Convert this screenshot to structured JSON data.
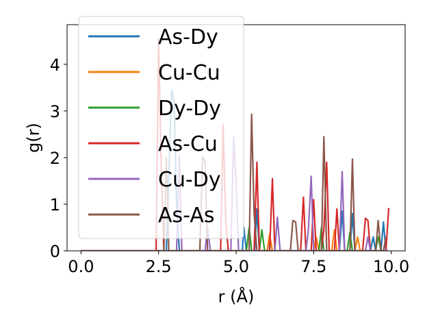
{
  "chart_data": {
    "type": "line",
    "xlabel": "r (Å)",
    "ylabel": "g(r)",
    "xlim": [
      -0.45,
      10.45
    ],
    "ylim": [
      0,
      4.85
    ],
    "xticks": [
      0.0,
      2.5,
      5.0,
      7.5,
      10.0
    ],
    "xtick_labels": [
      "0.0",
      "2.5",
      "5.0",
      "7.5",
      "10.0"
    ],
    "yticks": [
      0,
      1,
      2,
      3,
      4
    ],
    "ytick_labels": [
      "0",
      "1",
      "2",
      "3",
      "4"
    ],
    "grid": false,
    "legend_position": "upper-left",
    "series": [
      {
        "name": "As-Dy",
        "color": "#1f77b4",
        "points": [
          [
            0,
            0
          ],
          [
            2.75,
            0
          ],
          [
            2.83,
            1.6
          ],
          [
            2.92,
            3.45
          ],
          [
            3.0,
            3.2
          ],
          [
            3.08,
            1.0
          ],
          [
            3.17,
            0
          ],
          [
            5.2,
            0
          ],
          [
            5.25,
            0.5
          ],
          [
            5.33,
            0.0
          ],
          [
            5.6,
            0.0
          ],
          [
            5.67,
            0.9
          ],
          [
            5.75,
            0.0
          ],
          [
            6.0,
            0.0
          ],
          [
            6.08,
            0.25
          ],
          [
            6.17,
            0.0
          ],
          [
            8.33,
            0.0
          ],
          [
            8.42,
            0.85
          ],
          [
            8.5,
            0.0
          ],
          [
            8.67,
            0.0
          ],
          [
            8.75,
            0.8
          ],
          [
            8.83,
            0.0
          ],
          [
            9.33,
            0.0
          ],
          [
            9.42,
            0.3
          ],
          [
            9.5,
            0.0
          ],
          [
            9.67,
            0.0
          ],
          [
            9.75,
            0.62
          ],
          [
            9.83,
            0.0
          ],
          [
            9.9,
            0.0
          ]
        ]
      },
      {
        "name": "Cu-Cu",
        "color": "#ff7f0e",
        "points": [
          [
            0,
            0
          ],
          [
            5.33,
            0
          ],
          [
            5.42,
            0.45
          ],
          [
            5.5,
            0.0
          ],
          [
            6.0,
            0.0
          ],
          [
            6.08,
            0.35
          ],
          [
            6.17,
            0.0
          ],
          [
            7.5,
            0.0
          ],
          [
            7.58,
            0.3
          ],
          [
            7.67,
            0.0
          ],
          [
            8.08,
            0.0
          ],
          [
            8.17,
            0.45
          ],
          [
            8.25,
            0.0
          ],
          [
            8.83,
            0.0
          ],
          [
            8.92,
            0.3
          ],
          [
            9.0,
            0.0
          ],
          [
            9.9,
            0.0
          ]
        ]
      },
      {
        "name": "Dy-Dy",
        "color": "#2ca02c",
        "points": [
          [
            0,
            0
          ],
          [
            5.33,
            0
          ],
          [
            5.42,
            0.5
          ],
          [
            5.5,
            0.0
          ],
          [
            5.75,
            0.0
          ],
          [
            5.83,
            0.45
          ],
          [
            5.92,
            0.0
          ],
          [
            7.67,
            0.0
          ],
          [
            7.75,
            0.5
          ],
          [
            7.83,
            0.0
          ],
          [
            8.58,
            0.0
          ],
          [
            8.67,
            0.4
          ],
          [
            8.75,
            0.0
          ],
          [
            9.5,
            0.0
          ],
          [
            9.58,
            0.3
          ],
          [
            9.67,
            0.0
          ],
          [
            9.9,
            0.0
          ]
        ]
      },
      {
        "name": "As-Cu",
        "color": "#d62728",
        "points": [
          [
            0,
            0
          ],
          [
            2.42,
            0
          ],
          [
            2.5,
            4.55
          ],
          [
            2.58,
            2.0
          ],
          [
            2.67,
            0.0
          ],
          [
            4.5,
            0.0
          ],
          [
            4.58,
            2.7
          ],
          [
            4.67,
            0.6
          ],
          [
            4.75,
            0.0
          ],
          [
            5.58,
            0.0
          ],
          [
            5.67,
            1.9
          ],
          [
            5.75,
            0.0
          ],
          [
            6.08,
            0.0
          ],
          [
            6.17,
            1.55
          ],
          [
            6.25,
            0.0
          ],
          [
            7.08,
            0.0
          ],
          [
            7.17,
            1.15
          ],
          [
            7.25,
            0.0
          ],
          [
            7.42,
            0.0
          ],
          [
            7.5,
            1.1
          ],
          [
            7.58,
            0.0
          ],
          [
            7.75,
            0.0
          ],
          [
            7.83,
            0.45
          ],
          [
            7.92,
            1.9
          ],
          [
            8.0,
            0.0
          ],
          [
            8.17,
            0.0
          ],
          [
            8.25,
            0.9
          ],
          [
            8.33,
            0.0
          ],
          [
            9.08,
            0.0
          ],
          [
            9.17,
            0.7
          ],
          [
            9.25,
            0.65
          ],
          [
            9.33,
            0.0
          ],
          [
            9.83,
            0.0
          ],
          [
            9.92,
            0.92
          ]
        ]
      },
      {
        "name": "Cu-Dy",
        "color": "#9467bd",
        "points": [
          [
            0,
            0
          ],
          [
            3.08,
            0
          ],
          [
            3.17,
            2.05
          ],
          [
            3.25,
            0.0
          ],
          [
            4.0,
            0.0
          ],
          [
            4.08,
            0.5
          ],
          [
            4.17,
            0.0
          ],
          [
            4.83,
            0.0
          ],
          [
            4.92,
            2.45
          ],
          [
            5.0,
            1.5
          ],
          [
            5.08,
            0.0
          ],
          [
            6.25,
            0.0
          ],
          [
            6.33,
            0.72
          ],
          [
            6.42,
            0.0
          ],
          [
            7.25,
            0.0
          ],
          [
            7.33,
            0.45
          ],
          [
            7.42,
            1.6
          ],
          [
            7.5,
            0.0
          ],
          [
            8.33,
            0.0
          ],
          [
            8.42,
            1.7
          ],
          [
            8.5,
            0.0
          ],
          [
            9.17,
            0.0
          ],
          [
            9.25,
            0.3
          ],
          [
            9.33,
            0.0
          ],
          [
            9.9,
            0.0
          ]
        ]
      },
      {
        "name": "As-As",
        "color": "#8c564b",
        "points": [
          [
            0,
            0
          ],
          [
            2.67,
            0
          ],
          [
            2.75,
            2.0
          ],
          [
            2.83,
            0.0
          ],
          [
            3.83,
            0.0
          ],
          [
            3.92,
            2.02
          ],
          [
            4.0,
            1.9
          ],
          [
            4.08,
            0.0
          ],
          [
            5.42,
            0.0
          ],
          [
            5.5,
            2.93
          ],
          [
            5.58,
            0.8
          ],
          [
            5.67,
            0.0
          ],
          [
            6.75,
            0.0
          ],
          [
            6.83,
            0.65
          ],
          [
            6.92,
            0.62
          ],
          [
            7.0,
            0.0
          ],
          [
            7.75,
            0.0
          ],
          [
            7.83,
            2.45
          ],
          [
            7.92,
            0.0
          ],
          [
            8.67,
            0.0
          ],
          [
            8.75,
            1.97
          ],
          [
            8.83,
            0.0
          ],
          [
            9.5,
            0.0
          ],
          [
            9.58,
            0.65
          ],
          [
            9.67,
            0.0
          ],
          [
            9.75,
            0.0
          ],
          [
            9.83,
            0.3
          ]
        ]
      }
    ]
  }
}
